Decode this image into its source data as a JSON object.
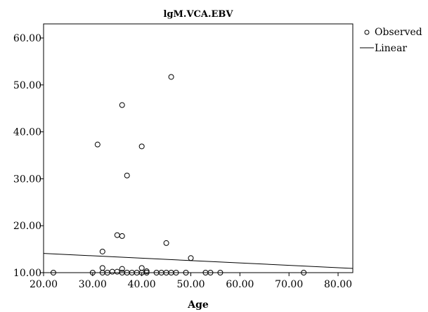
{
  "chart_data": {
    "type": "scatter",
    "title": "lgM.VCA.EBV",
    "xlabel": "Age",
    "ylabel": "",
    "xlim": [
      20,
      83
    ],
    "ylim": [
      10,
      63
    ],
    "x_ticks": [
      "20.00",
      "30.00",
      "40.00",
      "50.00",
      "60.00",
      "70.00",
      "80.00"
    ],
    "y_ticks": [
      "10.00",
      "20.00",
      "30.00",
      "40.00",
      "50.00",
      "60.00"
    ],
    "grid": false,
    "legend": {
      "position": "right",
      "entries": [
        {
          "label": "Observed",
          "marker": "circle"
        },
        {
          "label": "Linear",
          "marker": "line"
        }
      ]
    },
    "series": [
      {
        "name": "Observed",
        "kind": "points",
        "points": [
          [
            22,
            10.0
          ],
          [
            30,
            10.0
          ],
          [
            31,
            37.3
          ],
          [
            32,
            14.5
          ],
          [
            32,
            11.0
          ],
          [
            32,
            10.0
          ],
          [
            33,
            10.0
          ],
          [
            34,
            10.2
          ],
          [
            35,
            10.2
          ],
          [
            35,
            18.0
          ],
          [
            36,
            45.7
          ],
          [
            36,
            17.8
          ],
          [
            36,
            10.8
          ],
          [
            36,
            10.0
          ],
          [
            37,
            30.7
          ],
          [
            37,
            10.0
          ],
          [
            38,
            10.0
          ],
          [
            39,
            10.0
          ],
          [
            40,
            36.9
          ],
          [
            40,
            11.0
          ],
          [
            40,
            10.0
          ],
          [
            41,
            10.3
          ],
          [
            41,
            10.0
          ],
          [
            43,
            10.0
          ],
          [
            44,
            10.0
          ],
          [
            45,
            16.3
          ],
          [
            45,
            10.0
          ],
          [
            46,
            51.7
          ],
          [
            46,
            10.0
          ],
          [
            47,
            10.0
          ],
          [
            49,
            10.0
          ],
          [
            50,
            13.1
          ],
          [
            53,
            10.0
          ],
          [
            54,
            10.0
          ],
          [
            56,
            10.0
          ],
          [
            73,
            10.0
          ]
        ]
      },
      {
        "name": "Linear",
        "kind": "line",
        "points": [
          [
            20,
            14.1
          ],
          [
            83,
            10.9
          ]
        ]
      }
    ]
  }
}
